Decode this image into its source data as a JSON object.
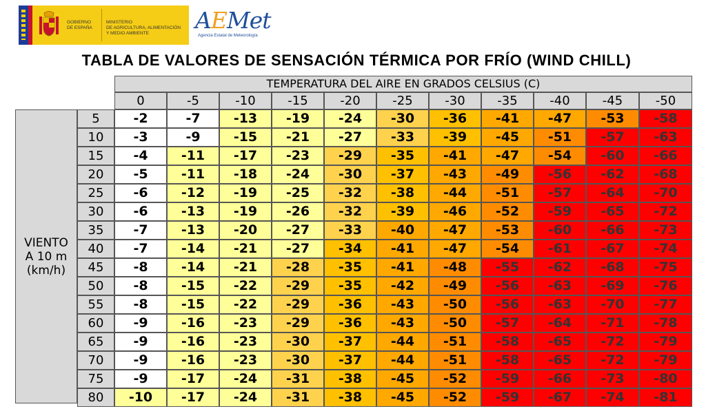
{
  "header": {
    "gov_line1": "GOBIERNO",
    "gov_line2": "DE ESPAÑA",
    "ministry_line1": "MINISTERIO",
    "ministry_line2": "DE AGRICULTURA, ALIMENTACIÓN",
    "ministry_line3": "Y MEDIO AMBIENTE",
    "aemet_logo": "AEMet",
    "aemet_subtitle": "Agencia Estatal de Meteorología"
  },
  "colors": {
    "white": "#ffffff",
    "light_yellow": "#ffffa6",
    "yellow": "#ffdd00",
    "orange_light": "#ffa500",
    "orange": "#ff7f00",
    "red": "#ff0000",
    "header_gray": "#d9d9d9"
  },
  "chart_data": {
    "type": "table",
    "title": "TABLA DE VALORES DE SENSACIÓN TÉRMICA POR FRÍO (WIND CHILL)",
    "column_header": "TEMPERATURA DEL AIRE EN GRADOS CELSIUS (C)",
    "row_header": "VIENTO\nA 10 m\n(km/h)",
    "columns": [
      "0",
      "-5",
      "-10",
      "-15",
      "-20",
      "-25",
      "-30",
      "-35",
      "-40",
      "-45",
      "-50"
    ],
    "rows": [
      "5",
      "10",
      "15",
      "20",
      "25",
      "30",
      "35",
      "40",
      "45",
      "50",
      "55",
      "60",
      "65",
      "70",
      "75",
      "80"
    ],
    "values": [
      [
        -2,
        -7,
        -13,
        -19,
        -24,
        -30,
        -36,
        -41,
        -47,
        -53,
        -58
      ],
      [
        -3,
        -9,
        -15,
        -21,
        -27,
        -33,
        -39,
        -45,
        -51,
        -57,
        -63
      ],
      [
        -4,
        -11,
        -17,
        -23,
        -29,
        -35,
        -41,
        -47,
        -54,
        -60,
        -66
      ],
      [
        -5,
        -11,
        -18,
        -24,
        -30,
        -37,
        -43,
        -49,
        -56,
        -62,
        -68
      ],
      [
        -6,
        -12,
        -19,
        -25,
        -32,
        -38,
        -44,
        -51,
        -57,
        -64,
        -70
      ],
      [
        -6,
        -13,
        -19,
        -26,
        -32,
        -39,
        -46,
        -52,
        -59,
        -65,
        -72
      ],
      [
        -7,
        -13,
        -20,
        -27,
        -33,
        -40,
        -47,
        -53,
        -60,
        -66,
        -73
      ],
      [
        -7,
        -14,
        -21,
        -27,
        -34,
        -41,
        -47,
        -54,
        -61,
        -67,
        -74
      ],
      [
        -8,
        -14,
        -21,
        -28,
        -35,
        -41,
        -48,
        -55,
        -62,
        -68,
        -75
      ],
      [
        -8,
        -15,
        -22,
        -29,
        -35,
        -42,
        -49,
        -56,
        -63,
        -69,
        -76
      ],
      [
        -8,
        -15,
        -22,
        -29,
        -36,
        -43,
        -50,
        -56,
        -63,
        -70,
        -77
      ],
      [
        -9,
        -16,
        -23,
        -29,
        -36,
        -43,
        -50,
        -57,
        -64,
        -71,
        -78
      ],
      [
        -9,
        -16,
        -23,
        -30,
        -37,
        -44,
        -51,
        -58,
        -65,
        -72,
        -79
      ],
      [
        -9,
        -16,
        -23,
        -30,
        -37,
        -44,
        -51,
        -58,
        -65,
        -72,
        -79
      ],
      [
        -9,
        -17,
        -24,
        -31,
        -38,
        -45,
        -52,
        -59,
        -66,
        -73,
        -80
      ],
      [
        -10,
        -17,
        -24,
        -31,
        -38,
        -45,
        -52,
        -59,
        -67,
        -74,
        -81
      ]
    ]
  }
}
